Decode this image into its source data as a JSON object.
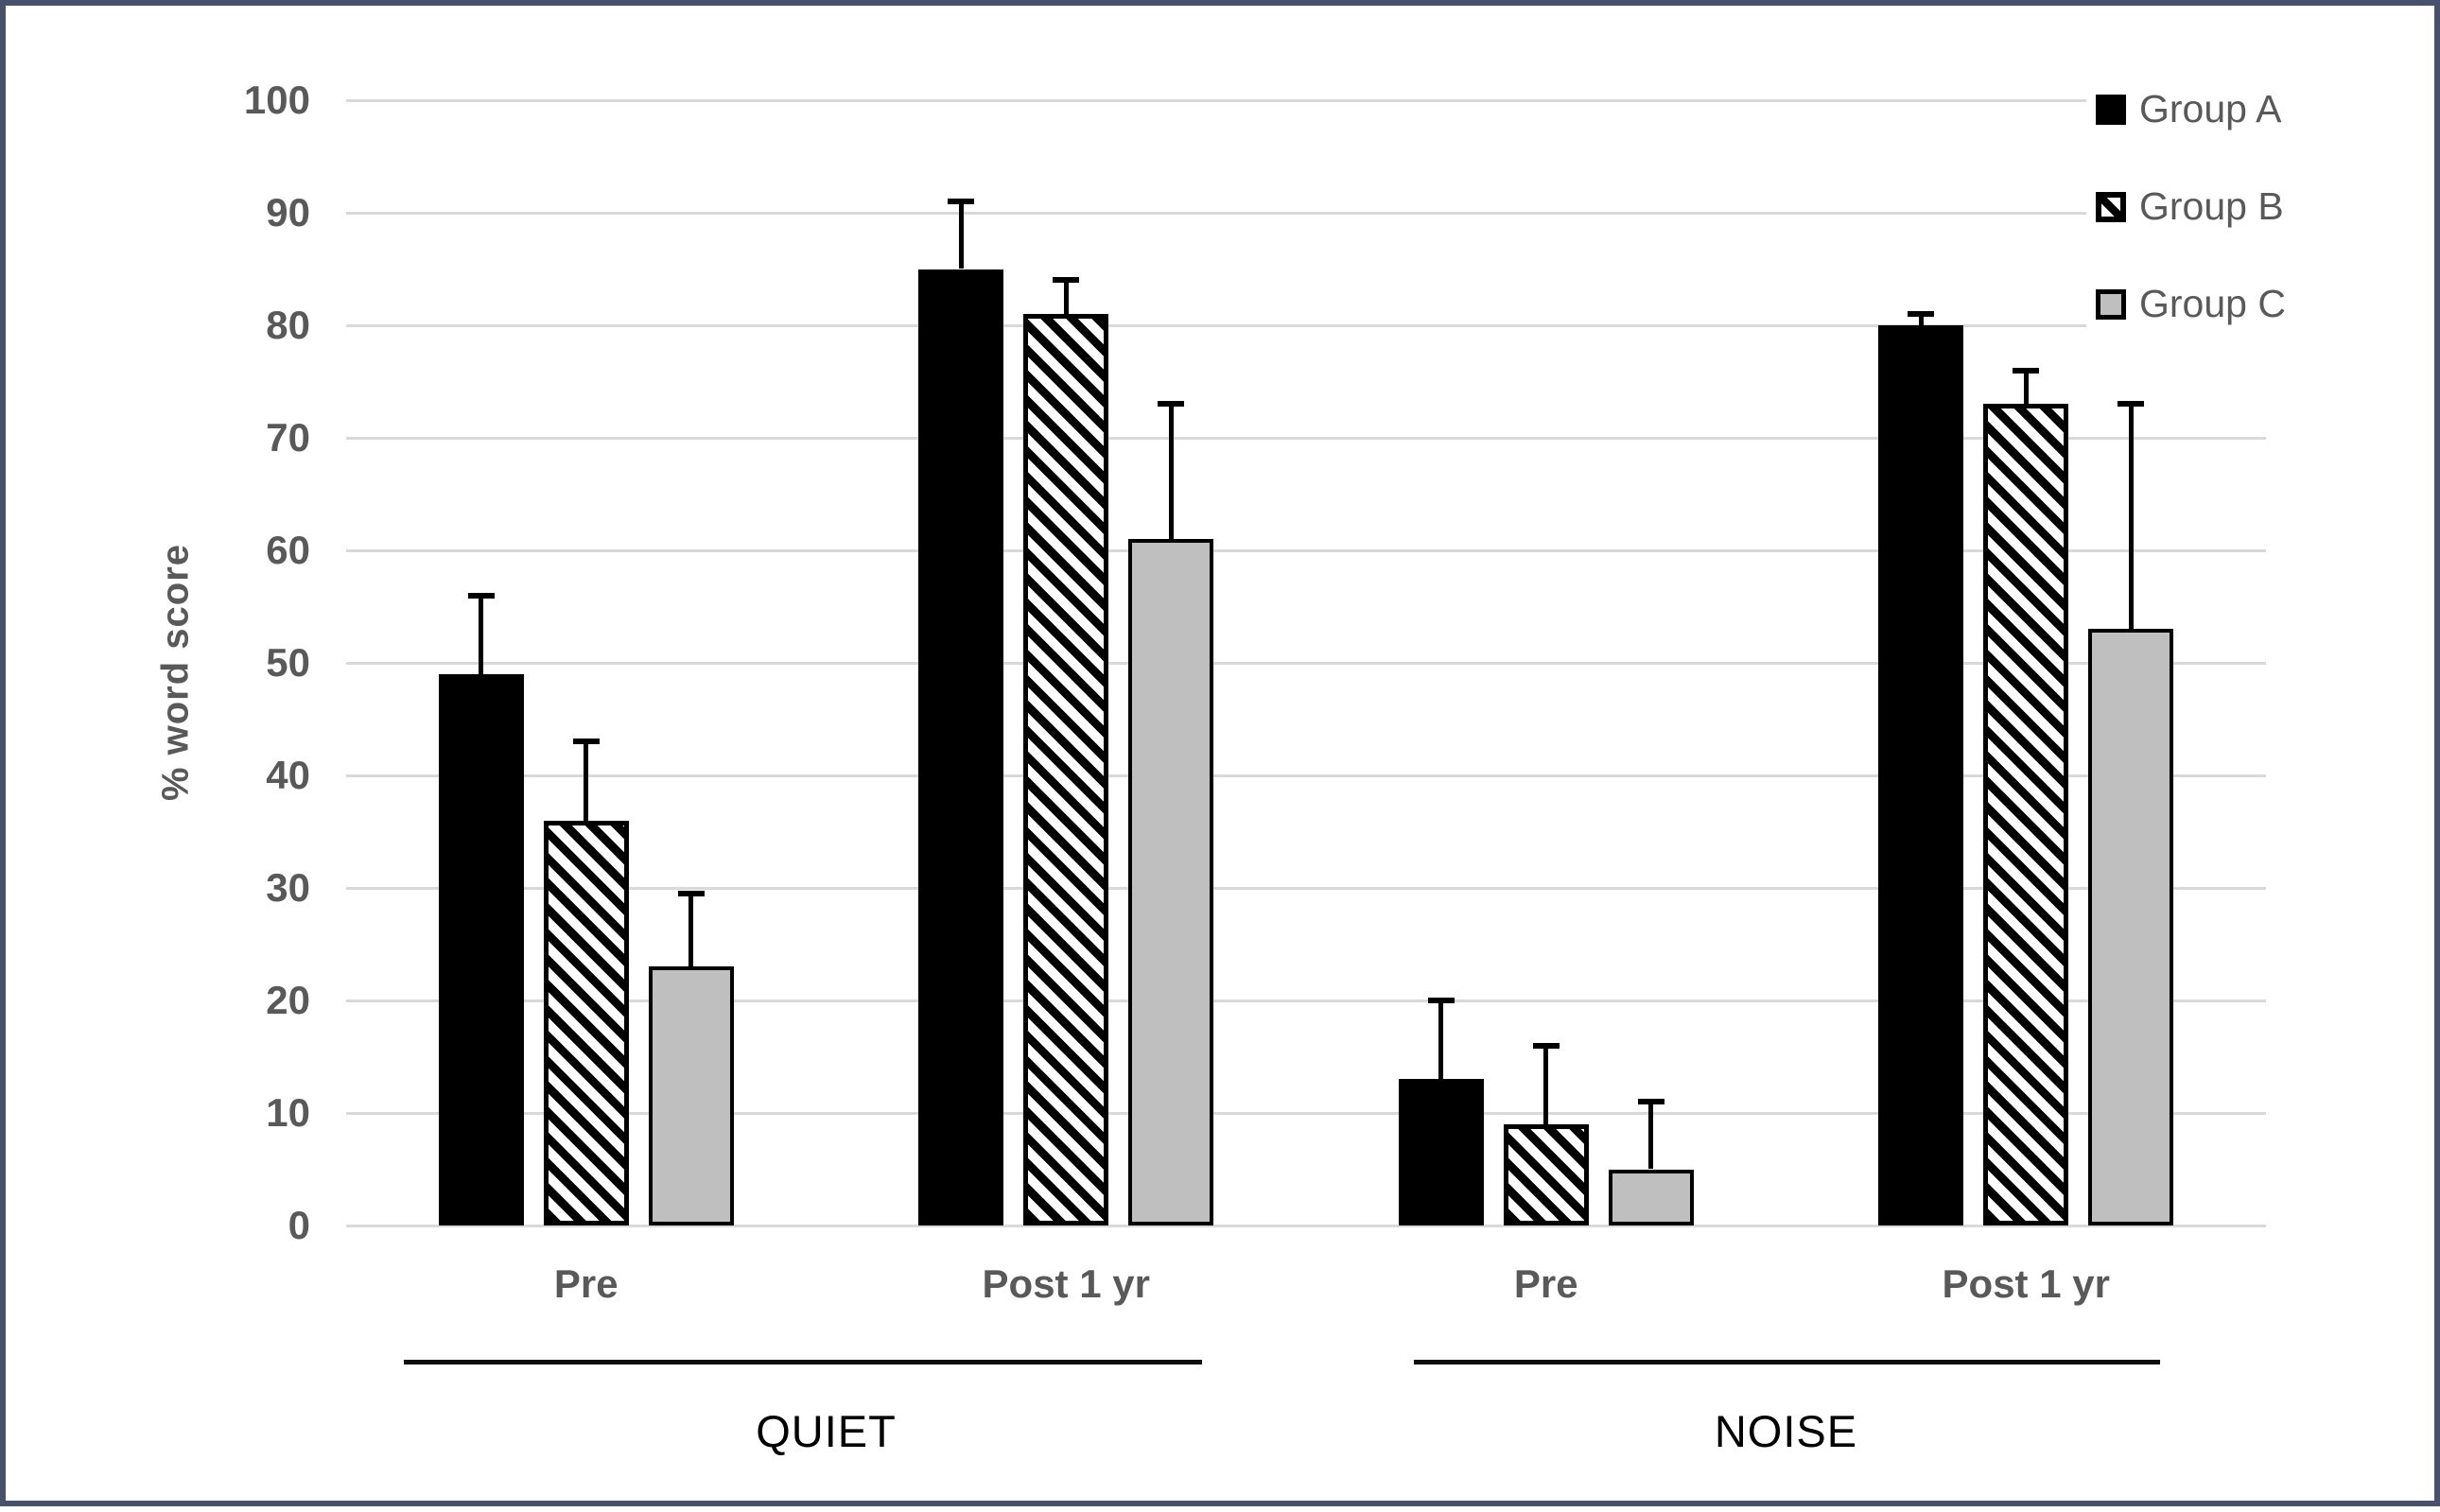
{
  "frame": {
    "border_color": "#47516b",
    "background": "#ffffff"
  },
  "colors": {
    "bar_black": "#000000",
    "bar_gray_fill": "#bfbfbf",
    "bar_border": "#000000",
    "gridline": "#d9d9d9",
    "axis_text": "#595959",
    "section_text": "#000000",
    "frame_border": "#47516b"
  },
  "chart_data": {
    "type": "bar",
    "title": "",
    "xlabel": "",
    "ylabel": "% word score",
    "ylim": [
      0,
      100
    ],
    "yticks": [
      0,
      10,
      20,
      30,
      40,
      50,
      60,
      70,
      80,
      90,
      100
    ],
    "grid": true,
    "error_bars": "upper-only",
    "legend_position": "top-right",
    "sections": [
      {
        "label": "QUIET",
        "categories": [
          "Pre",
          "Post 1 yr"
        ]
      },
      {
        "label": "NOISE",
        "categories": [
          "Pre",
          "Post 1 yr"
        ]
      }
    ],
    "group_order": [
      "QUIET Pre",
      "QUIET Post 1 yr",
      "NOISE Pre",
      "NOISE Post 1 yr"
    ],
    "series": [
      {
        "name": "Group A",
        "style": "solid-black",
        "values": [
          49,
          85,
          13,
          80
        ],
        "error_upper": [
          56,
          91,
          20,
          81
        ]
      },
      {
        "name": "Group B",
        "style": "diagonal-hatch",
        "values": [
          36,
          81,
          9,
          73
        ],
        "error_upper": [
          43,
          84,
          16,
          76
        ]
      },
      {
        "name": "Group C",
        "style": "solid-gray",
        "values": [
          23,
          61,
          5,
          53
        ],
        "error_upper": [
          29.5,
          73,
          11,
          73
        ]
      }
    ]
  }
}
